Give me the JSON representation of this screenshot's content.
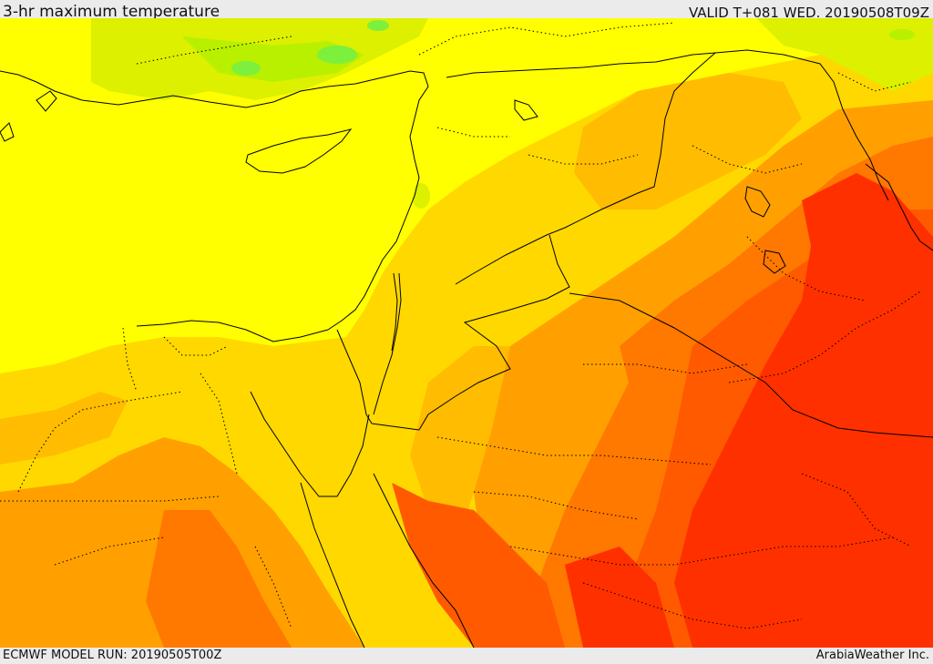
{
  "header": {
    "title": "3-hr maximum temperature",
    "valid": "VALID T+081 WED. 20190508T09Z"
  },
  "footer": {
    "model_run": "ECMWF MODEL RUN: 20190505T00Z",
    "credit": "ArabiaWeather Inc."
  },
  "palette": {
    "green": "#7cf03c",
    "light_green": "#b8f000",
    "yellow_green": "#dcf000",
    "yellow": "#ffff00",
    "gold": "#ffd800",
    "orange_light": "#ffbc00",
    "orange": "#ffa000",
    "orange_dark": "#ff7800",
    "red_orange": "#ff5a00",
    "red": "#ff3000"
  }
}
